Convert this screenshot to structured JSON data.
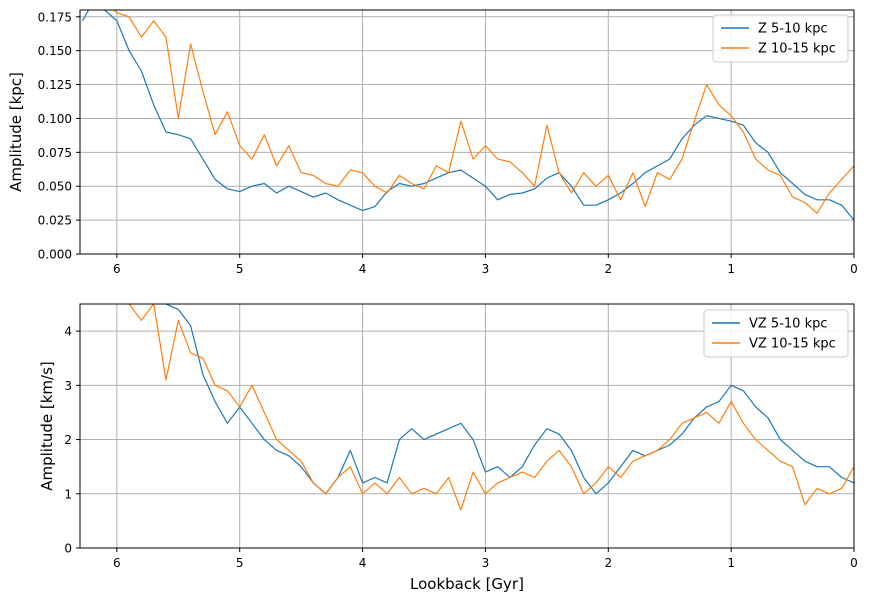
{
  "colors": {
    "series1": "#1f77b4",
    "series2": "#ff7f0e",
    "grid": "#b0b0b0"
  },
  "chart_data": [
    {
      "type": "line",
      "title": "",
      "xlabel": "",
      "ylabel": "Amplitude [kpc]",
      "xlim": [
        6.3,
        0
      ],
      "ylim": [
        0,
        0.18
      ],
      "xticks": [
        6,
        5,
        4,
        3,
        2,
        1,
        0
      ],
      "yticks": [
        0.0,
        0.025,
        0.05,
        0.075,
        0.1,
        0.125,
        0.15,
        0.175
      ],
      "ytick_labels": [
        "0.000",
        "0.025",
        "0.050",
        "0.075",
        "0.100",
        "0.125",
        "0.150",
        "0.175"
      ],
      "grid": true,
      "legend_position": "top-right",
      "series": [
        {
          "name": "Z 5-10 kpc",
          "color": "#1f77b4",
          "x": [
            6.28,
            6.2,
            6.1,
            6.0,
            5.9,
            5.8,
            5.7,
            5.6,
            5.5,
            5.4,
            5.3,
            5.2,
            5.1,
            5.0,
            4.9,
            4.8,
            4.7,
            4.6,
            4.5,
            4.4,
            4.3,
            4.2,
            4.1,
            4.0,
            3.9,
            3.8,
            3.7,
            3.6,
            3.5,
            3.4,
            3.3,
            3.2,
            3.1,
            3.0,
            2.9,
            2.8,
            2.7,
            2.6,
            2.5,
            2.4,
            2.3,
            2.2,
            2.1,
            2.0,
            1.9,
            1.8,
            1.7,
            1.6,
            1.5,
            1.4,
            1.3,
            1.2,
            1.1,
            1.0,
            0.9,
            0.8,
            0.7,
            0.6,
            0.5,
            0.4,
            0.3,
            0.2,
            0.1,
            0.0
          ],
          "y": [
            0.172,
            0.185,
            0.18,
            0.172,
            0.15,
            0.135,
            0.11,
            0.09,
            0.088,
            0.085,
            0.07,
            0.055,
            0.048,
            0.046,
            0.05,
            0.052,
            0.045,
            0.05,
            0.046,
            0.042,
            0.045,
            0.04,
            0.036,
            0.032,
            0.035,
            0.046,
            0.052,
            0.05,
            0.052,
            0.056,
            0.06,
            0.062,
            0.056,
            0.05,
            0.04,
            0.044,
            0.045,
            0.048,
            0.056,
            0.06,
            0.05,
            0.036,
            0.036,
            0.04,
            0.045,
            0.052,
            0.06,
            0.065,
            0.07,
            0.085,
            0.095,
            0.102,
            0.1,
            0.098,
            0.095,
            0.082,
            0.075,
            0.06,
            0.052,
            0.044,
            0.04,
            0.04,
            0.036,
            0.025
          ]
        },
        {
          "name": "Z 10-15 kpc",
          "color": "#ff7f0e",
          "x": [
            6.28,
            6.2,
            6.1,
            6.0,
            5.9,
            5.8,
            5.7,
            5.6,
            5.5,
            5.4,
            5.3,
            5.2,
            5.1,
            5.0,
            4.9,
            4.8,
            4.7,
            4.6,
            4.5,
            4.4,
            4.3,
            4.2,
            4.1,
            4.0,
            3.9,
            3.8,
            3.7,
            3.6,
            3.5,
            3.4,
            3.3,
            3.2,
            3.1,
            3.0,
            2.9,
            2.8,
            2.7,
            2.6,
            2.5,
            2.4,
            2.3,
            2.2,
            2.1,
            2.0,
            1.9,
            1.8,
            1.7,
            1.6,
            1.5,
            1.4,
            1.3,
            1.2,
            1.1,
            1.0,
            0.9,
            0.8,
            0.7,
            0.6,
            0.5,
            0.4,
            0.3,
            0.2,
            0.1,
            0.0
          ],
          "y": [
            0.19,
            0.195,
            0.185,
            0.178,
            0.175,
            0.16,
            0.172,
            0.16,
            0.1,
            0.155,
            0.12,
            0.088,
            0.105,
            0.08,
            0.07,
            0.088,
            0.065,
            0.08,
            0.06,
            0.058,
            0.052,
            0.05,
            0.062,
            0.06,
            0.05,
            0.045,
            0.058,
            0.052,
            0.048,
            0.065,
            0.06,
            0.098,
            0.07,
            0.08,
            0.07,
            0.068,
            0.06,
            0.05,
            0.095,
            0.06,
            0.045,
            0.06,
            0.05,
            0.058,
            0.04,
            0.06,
            0.035,
            0.06,
            0.055,
            0.07,
            0.098,
            0.125,
            0.11,
            0.102,
            0.09,
            0.07,
            0.062,
            0.058,
            0.042,
            0.038,
            0.03,
            0.045,
            0.055,
            0.065
          ]
        }
      ]
    },
    {
      "type": "line",
      "title": "",
      "xlabel": "Lookback [Gyr]",
      "ylabel": "Amplitude [km/s]",
      "xlim": [
        6.3,
        0
      ],
      "ylim": [
        0,
        4.5
      ],
      "xticks": [
        6,
        5,
        4,
        3,
        2,
        1,
        0
      ],
      "yticks": [
        0,
        1,
        2,
        3,
        4
      ],
      "ytick_labels": [
        "0",
        "1",
        "2",
        "3",
        "4"
      ],
      "grid": true,
      "legend_position": "top-right",
      "series": [
        {
          "name": "VZ 5-10 kpc",
          "color": "#1f77b4",
          "x": [
            6.28,
            6.2,
            6.1,
            6.0,
            5.9,
            5.8,
            5.7,
            5.6,
            5.5,
            5.4,
            5.3,
            5.2,
            5.1,
            5.0,
            4.9,
            4.8,
            4.7,
            4.6,
            4.5,
            4.4,
            4.3,
            4.2,
            4.1,
            4.0,
            3.9,
            3.8,
            3.7,
            3.6,
            3.5,
            3.4,
            3.3,
            3.2,
            3.1,
            3.0,
            2.9,
            2.8,
            2.7,
            2.6,
            2.5,
            2.4,
            2.3,
            2.2,
            2.1,
            2.0,
            1.9,
            1.8,
            1.7,
            1.6,
            1.5,
            1.4,
            1.3,
            1.2,
            1.1,
            1.0,
            0.9,
            0.8,
            0.7,
            0.6,
            0.5,
            0.4,
            0.3,
            0.2,
            0.1,
            0.0
          ],
          "y": [
            4.6,
            4.8,
            4.9,
            5.0,
            4.9,
            4.7,
            4.6,
            4.5,
            4.4,
            4.1,
            3.2,
            2.7,
            2.3,
            2.6,
            2.3,
            2.0,
            1.8,
            1.7,
            1.5,
            1.2,
            1.0,
            1.3,
            1.8,
            1.2,
            1.3,
            1.2,
            2.0,
            2.2,
            2.0,
            2.1,
            2.2,
            2.3,
            2.0,
            1.4,
            1.5,
            1.3,
            1.5,
            1.9,
            2.2,
            2.1,
            1.8,
            1.3,
            1.0,
            1.2,
            1.5,
            1.8,
            1.7,
            1.8,
            1.9,
            2.1,
            2.4,
            2.6,
            2.7,
            3.0,
            2.9,
            2.6,
            2.4,
            2.0,
            1.8,
            1.6,
            1.5,
            1.5,
            1.3,
            1.2
          ]
        },
        {
          "name": "VZ 10-15 kpc",
          "color": "#ff7f0e",
          "x": [
            6.28,
            6.2,
            6.1,
            6.0,
            5.9,
            5.8,
            5.7,
            5.6,
            5.5,
            5.4,
            5.3,
            5.2,
            5.1,
            5.0,
            4.9,
            4.8,
            4.7,
            4.6,
            4.5,
            4.4,
            4.3,
            4.2,
            4.1,
            4.0,
            3.9,
            3.8,
            3.7,
            3.6,
            3.5,
            3.4,
            3.3,
            3.2,
            3.1,
            3.0,
            2.9,
            2.8,
            2.7,
            2.6,
            2.5,
            2.4,
            2.3,
            2.2,
            2.1,
            2.0,
            1.9,
            1.8,
            1.7,
            1.6,
            1.5,
            1.4,
            1.3,
            1.2,
            1.1,
            1.0,
            0.9,
            0.8,
            0.7,
            0.6,
            0.5,
            0.4,
            0.3,
            0.2,
            0.1,
            0.0
          ],
          "y": [
            4.8,
            4.9,
            4.7,
            4.6,
            4.5,
            4.2,
            4.5,
            3.1,
            4.2,
            3.6,
            3.5,
            3.0,
            2.9,
            2.6,
            3.0,
            2.5,
            2.0,
            1.8,
            1.6,
            1.2,
            1.0,
            1.3,
            1.5,
            1.0,
            1.2,
            1.0,
            1.3,
            1.0,
            1.1,
            1.0,
            1.3,
            0.7,
            1.4,
            1.0,
            1.2,
            1.3,
            1.4,
            1.3,
            1.6,
            1.8,
            1.5,
            1.0,
            1.2,
            1.5,
            1.3,
            1.6,
            1.7,
            1.8,
            2.0,
            2.3,
            2.4,
            2.5,
            2.3,
            2.7,
            2.3,
            2.0,
            1.8,
            1.6,
            1.5,
            0.8,
            1.1,
            1.0,
            1.1,
            1.5
          ]
        }
      ]
    }
  ]
}
